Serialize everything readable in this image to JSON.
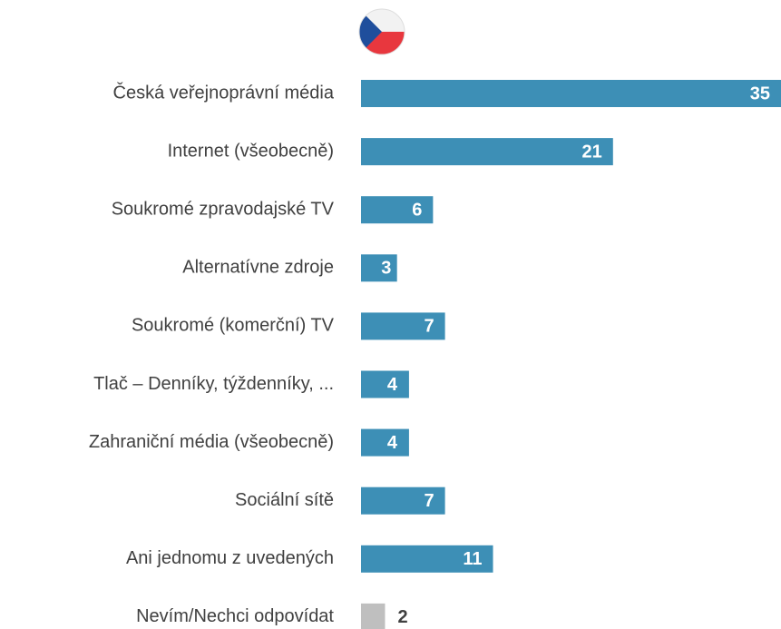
{
  "chart_data": {
    "type": "bar",
    "orientation": "horizontal",
    "categories": [
      "Česká veřejnoprávní média",
      "Internet (všeobecně)",
      "Soukromé zpravodajské TV",
      "Alternatívne zdroje",
      "Soukromé (komerční) TV",
      "Tlač – Denníky, týždenníky, ...",
      "Zahraniční média (všeobecně)",
      "Sociální sítě",
      "Ani jednomu z uvedených",
      "Nevím/Nechci odpovídat"
    ],
    "values": [
      35,
      21,
      6,
      3,
      7,
      4,
      4,
      7,
      11,
      2
    ],
    "colors": [
      "#3d8fb6",
      "#3d8fb6",
      "#3d8fb6",
      "#3d8fb6",
      "#3d8fb6",
      "#3d8fb6",
      "#3d8fb6",
      "#3d8fb6",
      "#3d8fb6",
      "#bfbfbf"
    ],
    "xlim": [
      0,
      35
    ]
  }
}
